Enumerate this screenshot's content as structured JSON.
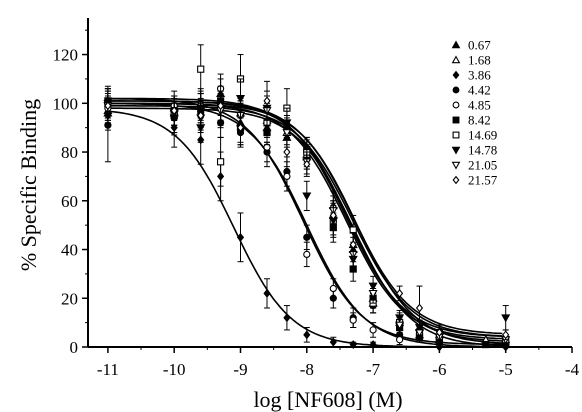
{
  "chart_data": {
    "type": "scatter",
    "title": "",
    "xlabel": "log [NF608] (M)",
    "ylabel": "% Specific Binding",
    "xlim": [
      -11.3,
      -4
    ],
    "ylim": [
      0,
      135
    ],
    "x_ticks": [
      -11,
      -10,
      -9,
      -8,
      -7,
      -6,
      -5,
      -4
    ],
    "y_ticks": [
      0,
      20,
      40,
      60,
      80,
      100,
      120
    ],
    "grid": false,
    "legend_position": "top-right",
    "curve_model": "one-site competition: bottom + (top - bottom) / (1 + 10^(x - logIC50))",
    "series": [
      {
        "name": "0.67",
        "marker": "triangle-filled",
        "top": 98,
        "bottom": 0,
        "logIC50": -7.3,
        "points": [
          {
            "x": -11,
            "y": 97,
            "err": 6
          },
          {
            "x": -10,
            "y": 96,
            "err": 5
          },
          {
            "x": -9.6,
            "y": 99,
            "err": 6
          },
          {
            "x": -9.3,
            "y": 104,
            "err": 6
          },
          {
            "x": -9,
            "y": 92,
            "err": 8
          },
          {
            "x": -8.6,
            "y": 90,
            "err": 6
          },
          {
            "x": -8.3,
            "y": 86,
            "err": 6
          },
          {
            "x": -8,
            "y": 78,
            "err": 5
          },
          {
            "x": -7.6,
            "y": 54,
            "err": 6
          },
          {
            "x": -7.3,
            "y": 40,
            "err": 5
          },
          {
            "x": -7,
            "y": 20,
            "err": 4
          },
          {
            "x": -6.6,
            "y": 10,
            "err": 3
          },
          {
            "x": -6.3,
            "y": 5,
            "err": 2
          },
          {
            "x": -6,
            "y": 3,
            "err": 2
          },
          {
            "x": -5.3,
            "y": 1,
            "err": 1
          },
          {
            "x": -5,
            "y": 1,
            "err": 1
          }
        ]
      },
      {
        "name": "1.68",
        "marker": "triangle-open",
        "top": 100,
        "bottom": 3,
        "logIC50": -7.4,
        "points": [
          {
            "x": -11,
            "y": 96,
            "err": 5
          },
          {
            "x": -10,
            "y": 98,
            "err": 5
          },
          {
            "x": -9.6,
            "y": 100,
            "err": 6
          },
          {
            "x": -9.3,
            "y": 99,
            "err": 6
          },
          {
            "x": -9,
            "y": 96,
            "err": 6
          },
          {
            "x": -8.6,
            "y": 93,
            "err": 5
          },
          {
            "x": -8.3,
            "y": 88,
            "err": 5
          },
          {
            "x": -8,
            "y": 79,
            "err": 6
          },
          {
            "x": -7.6,
            "y": 58,
            "err": 6
          },
          {
            "x": -7.3,
            "y": 42,
            "err": 5
          },
          {
            "x": -7,
            "y": 18,
            "err": 4
          },
          {
            "x": -6.6,
            "y": 11,
            "err": 3
          },
          {
            "x": -6.3,
            "y": 8,
            "err": 3
          },
          {
            "x": -6,
            "y": 5,
            "err": 2
          },
          {
            "x": -5.3,
            "y": 3,
            "err": 2
          },
          {
            "x": -5,
            "y": 3,
            "err": 2
          }
        ]
      },
      {
        "name": "3.86",
        "marker": "diamond-filled",
        "top": 98,
        "bottom": 0,
        "logIC50": -9.1,
        "points": [
          {
            "x": -11,
            "y": 95,
            "err": 6
          },
          {
            "x": -10,
            "y": 90,
            "err": 8
          },
          {
            "x": -9.6,
            "y": 85,
            "err": 10
          },
          {
            "x": -9.3,
            "y": 70,
            "err": 10
          },
          {
            "x": -9,
            "y": 45,
            "err": 10
          },
          {
            "x": -8.6,
            "y": 22,
            "err": 6
          },
          {
            "x": -8.3,
            "y": 12,
            "err": 5
          },
          {
            "x": -8,
            "y": 5,
            "err": 3
          },
          {
            "x": -7.6,
            "y": 2,
            "err": 2
          },
          {
            "x": -7.3,
            "y": 1,
            "err": 1
          },
          {
            "x": -7,
            "y": 1,
            "err": 1
          },
          {
            "x": -6,
            "y": 0,
            "err": 1
          },
          {
            "x": -5,
            "y": 0,
            "err": 1
          }
        ]
      },
      {
        "name": "4.42",
        "marker": "circle-filled",
        "top": 100,
        "bottom": 0,
        "logIC50": -8.0,
        "points": [
          {
            "x": -11,
            "y": 91,
            "err": 15
          },
          {
            "x": -10,
            "y": 94,
            "err": 6
          },
          {
            "x": -9.6,
            "y": 96,
            "err": 6
          },
          {
            "x": -9.3,
            "y": 92,
            "err": 6
          },
          {
            "x": -9,
            "y": 88,
            "err": 6
          },
          {
            "x": -8.6,
            "y": 80,
            "err": 6
          },
          {
            "x": -8.3,
            "y": 72,
            "err": 6
          },
          {
            "x": -8,
            "y": 45,
            "err": 5
          },
          {
            "x": -7.6,
            "y": 20,
            "err": 4
          },
          {
            "x": -7.3,
            "y": 12,
            "err": 4
          },
          {
            "x": -7,
            "y": 17,
            "err": 3
          },
          {
            "x": -6.6,
            "y": 5,
            "err": 2
          },
          {
            "x": -6,
            "y": 2,
            "err": 2
          },
          {
            "x": -5,
            "y": 1,
            "err": 1
          }
        ]
      },
      {
        "name": "4.85",
        "marker": "circle-open",
        "top": 102,
        "bottom": 1,
        "logIC50": -8.05,
        "points": [
          {
            "x": -11,
            "y": 98,
            "err": 6
          },
          {
            "x": -10,
            "y": 99,
            "err": 6
          },
          {
            "x": -9.6,
            "y": 98,
            "err": 6
          },
          {
            "x": -9.3,
            "y": 106,
            "err": 6
          },
          {
            "x": -9,
            "y": 95,
            "err": 6
          },
          {
            "x": -8.6,
            "y": 82,
            "err": 6
          },
          {
            "x": -8.3,
            "y": 70,
            "err": 6
          },
          {
            "x": -8,
            "y": 38,
            "err": 5
          },
          {
            "x": -7.6,
            "y": 24,
            "err": 4
          },
          {
            "x": -7.3,
            "y": 11,
            "err": 3
          },
          {
            "x": -7,
            "y": 7,
            "err": 3
          },
          {
            "x": -6.6,
            "y": 3,
            "err": 2
          },
          {
            "x": -6,
            "y": 2,
            "err": 2
          },
          {
            "x": -5,
            "y": 1,
            "err": 1
          }
        ]
      },
      {
        "name": "8.42",
        "marker": "square-filled",
        "top": 100,
        "bottom": 1,
        "logIC50": -7.25,
        "points": [
          {
            "x": -11,
            "y": 101,
            "err": 6
          },
          {
            "x": -10,
            "y": 97,
            "err": 6
          },
          {
            "x": -9.6,
            "y": 98,
            "err": 6
          },
          {
            "x": -9.3,
            "y": 101,
            "err": 6
          },
          {
            "x": -9,
            "y": 90,
            "err": 7
          },
          {
            "x": -8.6,
            "y": 88,
            "err": 5
          },
          {
            "x": -8.3,
            "y": 90,
            "err": 5
          },
          {
            "x": -8,
            "y": 81,
            "err": 5
          },
          {
            "x": -7.6,
            "y": 49,
            "err": 6
          },
          {
            "x": -7.3,
            "y": 32,
            "err": 5
          },
          {
            "x": -7,
            "y": 20,
            "err": 4
          },
          {
            "x": -6.6,
            "y": 8,
            "err": 3
          },
          {
            "x": -6.3,
            "y": 4,
            "err": 2
          },
          {
            "x": -6,
            "y": 2,
            "err": 2
          },
          {
            "x": -5.3,
            "y": 1,
            "err": 1
          },
          {
            "x": -5,
            "y": 1,
            "err": 1
          }
        ]
      },
      {
        "name": "14.69",
        "marker": "square-open",
        "top": 102,
        "bottom": 4,
        "logIC50": -7.4,
        "points": [
          {
            "x": -11,
            "y": 100,
            "err": 6
          },
          {
            "x": -10,
            "y": 95,
            "err": 8
          },
          {
            "x": -9.6,
            "y": 114,
            "err": 10
          },
          {
            "x": -9.3,
            "y": 76,
            "err": 10
          },
          {
            "x": -9,
            "y": 110,
            "err": 10
          },
          {
            "x": -8.6,
            "y": 92,
            "err": 8
          },
          {
            "x": -8.3,
            "y": 98,
            "err": 8
          },
          {
            "x": -8,
            "y": 80,
            "err": 6
          },
          {
            "x": -7.6,
            "y": 52,
            "err": 7
          },
          {
            "x": -7.3,
            "y": 48,
            "err": 6
          },
          {
            "x": -7,
            "y": 18,
            "err": 4
          },
          {
            "x": -6.6,
            "y": 10,
            "err": 3
          },
          {
            "x": -6.3,
            "y": 6,
            "err": 3
          },
          {
            "x": -6,
            "y": 4,
            "err": 2
          },
          {
            "x": -5,
            "y": 3,
            "err": 2
          }
        ]
      },
      {
        "name": "14.78",
        "marker": "triangle-down-filled",
        "top": 101,
        "bottom": 5,
        "logIC50": -7.3,
        "points": [
          {
            "x": -11,
            "y": 100,
            "err": 6
          },
          {
            "x": -10,
            "y": 94,
            "err": 6
          },
          {
            "x": -9.6,
            "y": 90,
            "err": 6
          },
          {
            "x": -9.3,
            "y": 97,
            "err": 7
          },
          {
            "x": -9,
            "y": 102,
            "err": 8
          },
          {
            "x": -8.6,
            "y": 98,
            "err": 7
          },
          {
            "x": -8.3,
            "y": 92,
            "err": 6
          },
          {
            "x": -8,
            "y": 62,
            "err": 6
          },
          {
            "x": -7.6,
            "y": 52,
            "err": 6
          },
          {
            "x": -7.3,
            "y": 36,
            "err": 5
          },
          {
            "x": -7,
            "y": 25,
            "err": 4
          },
          {
            "x": -6.6,
            "y": 12,
            "err": 3
          },
          {
            "x": -6.3,
            "y": 8,
            "err": 3
          },
          {
            "x": -6,
            "y": 6,
            "err": 3
          },
          {
            "x": -5,
            "y": 12,
            "err": 5
          }
        ]
      },
      {
        "name": "21.05",
        "marker": "triangle-down-open",
        "top": 101,
        "bottom": 2,
        "logIC50": -7.35,
        "points": [
          {
            "x": -11,
            "y": 99,
            "err": 6
          },
          {
            "x": -10,
            "y": 96,
            "err": 6
          },
          {
            "x": -9.6,
            "y": 94,
            "err": 6
          },
          {
            "x": -9.3,
            "y": 97,
            "err": 6
          },
          {
            "x": -9,
            "y": 95,
            "err": 6
          },
          {
            "x": -8.6,
            "y": 97,
            "err": 6
          },
          {
            "x": -8.3,
            "y": 88,
            "err": 6
          },
          {
            "x": -8,
            "y": 76,
            "err": 5
          },
          {
            "x": -7.6,
            "y": 56,
            "err": 6
          },
          {
            "x": -7.3,
            "y": 38,
            "err": 5
          },
          {
            "x": -7,
            "y": 22,
            "err": 4
          },
          {
            "x": -6.6,
            "y": 9,
            "err": 3
          },
          {
            "x": -6.3,
            "y": 6,
            "err": 3
          },
          {
            "x": -6,
            "y": 4,
            "err": 2
          },
          {
            "x": -5,
            "y": 3,
            "err": 2
          }
        ]
      },
      {
        "name": "21.57",
        "marker": "diamond-open",
        "top": 99,
        "bottom": 4,
        "logIC50": -7.3,
        "points": [
          {
            "x": -11,
            "y": 99,
            "err": 6
          },
          {
            "x": -10,
            "y": 97,
            "err": 6
          },
          {
            "x": -9.6,
            "y": 95,
            "err": 6
          },
          {
            "x": -9.3,
            "y": 99,
            "err": 6
          },
          {
            "x": -9,
            "y": 90,
            "err": 7
          },
          {
            "x": -8.6,
            "y": 101,
            "err": 8
          },
          {
            "x": -8.3,
            "y": 80,
            "err": 6
          },
          {
            "x": -8,
            "y": 75,
            "err": 5
          },
          {
            "x": -7.6,
            "y": 54,
            "err": 6
          },
          {
            "x": -7.3,
            "y": 42,
            "err": 5
          },
          {
            "x": -6.6,
            "y": 22,
            "err": 3
          },
          {
            "x": -6.3,
            "y": 16,
            "err": 9
          },
          {
            "x": -6,
            "y": 6,
            "err": 3
          },
          {
            "x": -5,
            "y": 5,
            "err": 2
          }
        ]
      }
    ]
  }
}
